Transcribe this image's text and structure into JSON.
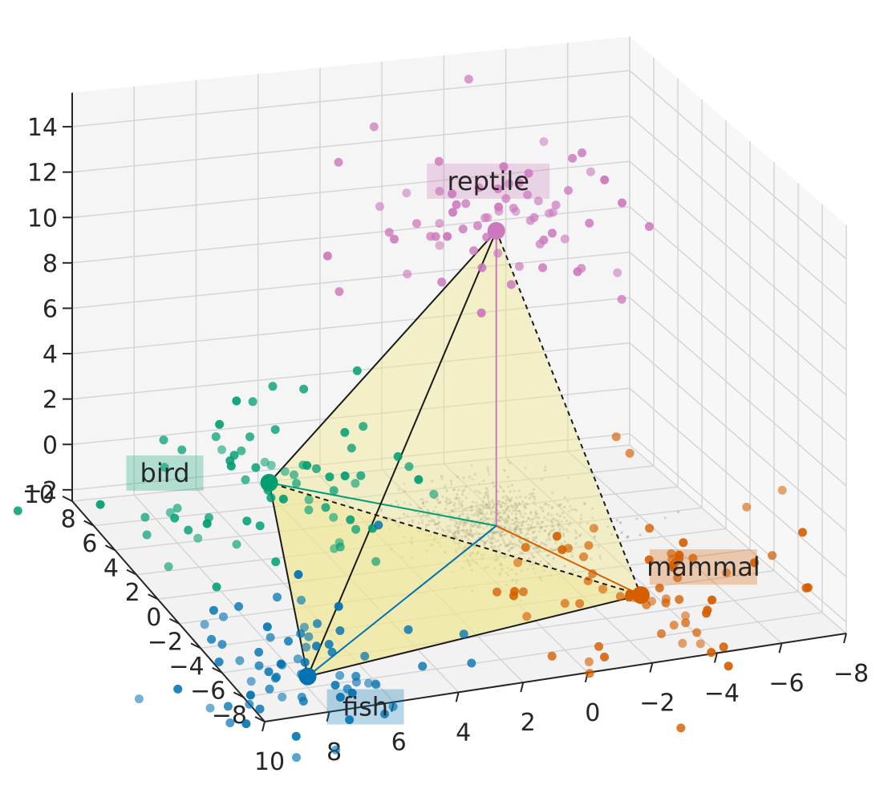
{
  "chart_data": {
    "type": "scatter",
    "projection": "3d",
    "title": "",
    "xlabel": "",
    "ylabel": "",
    "zlabel": "",
    "grid": true,
    "x_ticks": [
      "−8",
      "−6",
      "−4",
      "−2",
      "0",
      "2",
      "4",
      "6",
      "8",
      "10"
    ],
    "y_ticks": [
      "−8",
      "−6",
      "−4",
      "−2",
      "0",
      "2",
      "4",
      "6",
      "8",
      "10"
    ],
    "z_ticks": [
      "−2",
      "0",
      "2",
      "4",
      "6",
      "8",
      "10",
      "12",
      "14"
    ],
    "xlim": [
      -8,
      10
    ],
    "ylim": [
      -8,
      10
    ],
    "zlim": [
      -2.5,
      15.5
    ],
    "centroid": [
      0,
      0,
      0
    ],
    "classes": [
      {
        "name": "reptile",
        "color": "#cc78bc",
        "vertex": [
          0,
          0,
          13
        ]
      },
      {
        "name": "mammal",
        "color": "#d55e00",
        "vertex": [
          -2,
          -7,
          0
        ]
      },
      {
        "name": "bird",
        "color": "#029e73",
        "vertex": [
          4,
          9,
          -2
        ]
      },
      {
        "name": "fish",
        "color": "#0173b2",
        "vertex": [
          8,
          -6,
          -2
        ]
      }
    ],
    "tetrahedron": {
      "fill": "#f0e68c",
      "edges": [
        [
          "reptile",
          "mammal"
        ],
        [
          "reptile",
          "bird"
        ],
        [
          "reptile",
          "fish"
        ],
        [
          "mammal",
          "bird"
        ],
        [
          "mammal",
          "fish"
        ],
        [
          "bird",
          "fish"
        ]
      ]
    },
    "points_per_class": 70,
    "point_spread": [
      2.2,
      2.2,
      1.6
    ]
  }
}
